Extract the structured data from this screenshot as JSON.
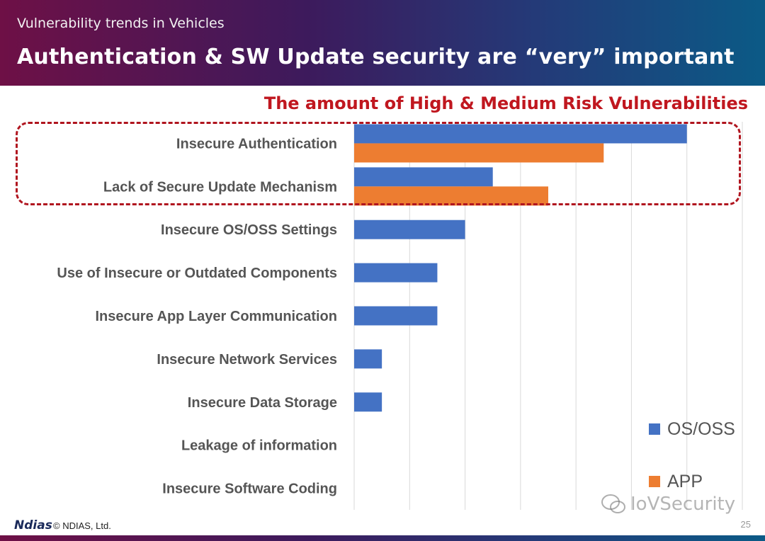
{
  "header": {
    "subtitle": "Vulnerability trends in Vehicles",
    "title": "Authentication & SW Update security are “very” important"
  },
  "chart_heading": "The amount of High & Medium Risk Vulnerabilities",
  "chart_data": {
    "type": "bar",
    "orientation": "horizontal",
    "title": "The amount of High & Medium Risk Vulnerabilities",
    "categories": [
      "Insecure Authentication",
      "Lack of Secure Update Mechanism",
      "Insecure OS/OSS Settings",
      "Use of Insecure or Outdated Components",
      "Insecure App Layer Communication",
      "Insecure Network Services",
      "Insecure Data Storage",
      "Leakage of information",
      "Insecure Software Coding"
    ],
    "series": [
      {
        "name": "OS/OSS",
        "color": "#4472c4",
        "values": [
          12,
          5,
          4,
          3,
          3,
          1,
          1,
          0,
          0
        ]
      },
      {
        "name": "APP",
        "color": "#ed7d31",
        "values": [
          9,
          7,
          0,
          0,
          0,
          0,
          0,
          0,
          0
        ]
      }
    ],
    "xlim": [
      0,
      14
    ],
    "grid": true,
    "legend_position": "bottom-right",
    "highlighted_categories": [
      "Insecure Authentication",
      "Lack of Secure Update Mechanism"
    ]
  },
  "footer": {
    "logo": "Ndias",
    "copyright": "© NDIAS, Ltd.",
    "page_number": "25"
  },
  "watermark": "IoVSecurity"
}
